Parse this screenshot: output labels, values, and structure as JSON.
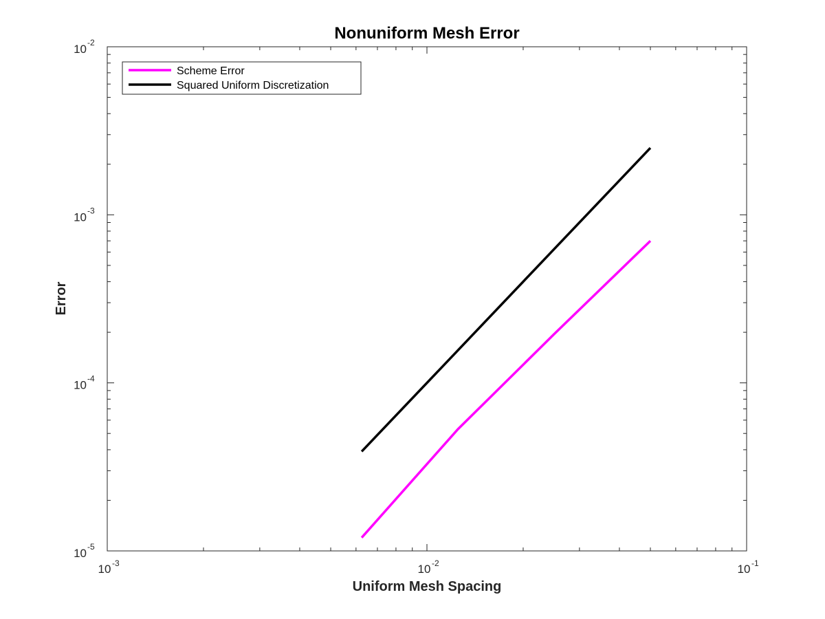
{
  "chart_data": {
    "type": "line",
    "title": "Nonuniform Mesh Error",
    "xlabel": "Uniform Mesh Spacing",
    "ylabel": "Error",
    "xscale": "log",
    "yscale": "log",
    "xlim": [
      0.001,
      0.1
    ],
    "ylim": [
      1e-05,
      0.01
    ],
    "grid": false,
    "legend_position": "top-left",
    "x_ticks": [
      {
        "value": 0.001,
        "base": "10",
        "exp": "-3"
      },
      {
        "value": 0.01,
        "base": "10",
        "exp": "-2"
      },
      {
        "value": 0.1,
        "base": "10",
        "exp": "-1"
      }
    ],
    "y_ticks": [
      {
        "value": 1e-05,
        "base": "10",
        "exp": "-5"
      },
      {
        "value": 0.0001,
        "base": "10",
        "exp": "-4"
      },
      {
        "value": 0.001,
        "base": "10",
        "exp": "-3"
      },
      {
        "value": 0.01,
        "base": "10",
        "exp": "-2"
      }
    ],
    "series": [
      {
        "name": "Scheme Error",
        "color": "#ff00ff",
        "x": [
          0.00625,
          0.0125,
          0.025,
          0.05
        ],
        "y": [
          1.2e-05,
          5.3e-05,
          0.000195,
          0.0007
        ]
      },
      {
        "name": "Squared Uniform Discretization",
        "color": "#000000",
        "x": [
          0.00625,
          0.0125,
          0.025,
          0.05
        ],
        "y": [
          3.90625e-05,
          0.00015625,
          0.000625,
          0.0025
        ]
      }
    ]
  }
}
